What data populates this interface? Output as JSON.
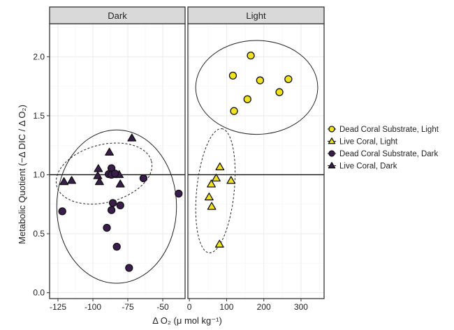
{
  "chart_data": {
    "type": "scatter",
    "title": "",
    "ylabel": "Metabolic Quotient (−Δ DIC / Δ O₂)",
    "xlabel": "Δ O₂ (μ mol kg⁻¹)",
    "ylim": [
      -0.05,
      2.28
    ],
    "yticks": [
      0.0,
      0.5,
      1.0,
      1.5,
      2.0
    ],
    "ytick_labels": [
      "0.0",
      "0.5",
      "1.0",
      "1.5",
      "2.0"
    ],
    "reference_line_y": 1.0,
    "grid": true,
    "legend_position": "right",
    "colors": {
      "light": "#f1e21f",
      "dark": "#3b1d4d",
      "stroke": "#111111"
    },
    "legend": [
      {
        "label": "Dead Coral Substrate, Light",
        "shape": "circle",
        "color": "light"
      },
      {
        "label": "Live Coral, Light",
        "shape": "triangle",
        "color": "light"
      },
      {
        "label": "Dead Coral Substrate, Dark",
        "shape": "circle",
        "color": "dark"
      },
      {
        "label": "Live Coral, Dark",
        "shape": "triangle",
        "color": "dark"
      }
    ],
    "panels": [
      {
        "strip": "Dark",
        "xlim": [
          -131,
          -34
        ],
        "xticks": [
          -125,
          -100,
          -75,
          -50
        ],
        "xtick_labels": [
          "-125",
          "-100",
          "-75",
          "-50"
        ],
        "series": [
          {
            "name": "Live Coral, Dark",
            "shape": "triangle",
            "color": "dark",
            "points": [
              [
                -72.1,
                1.31
              ],
              [
                -88.2,
                1.19
              ],
              [
                -96.1,
                1.05
              ],
              [
                -96.5,
                0.99
              ],
              [
                -95.3,
                0.94
              ],
              [
                -120.7,
                0.94
              ],
              [
                -115.2,
                0.95
              ],
              [
                -81.2,
                1.0
              ],
              [
                -80.4,
                0.92
              ],
              [
                -85.5,
                1.0
              ]
            ]
          },
          {
            "name": "Dead Coral Substrate, Dark",
            "shape": "circle",
            "color": "dark",
            "points": [
              [
                -86.7,
                1.055
              ],
              [
                -88.7,
                1.005
              ],
              [
                -86.7,
                1.0
              ],
              [
                -84.2,
                1.01
              ],
              [
                -63.8,
                0.97
              ],
              [
                -38.6,
                0.84
              ],
              [
                -121.9,
                0.69
              ],
              [
                -85.7,
                0.76
              ],
              [
                -86.7,
                0.7
              ],
              [
                -80.4,
                0.74
              ],
              [
                -90.0,
                0.55
              ],
              [
                -82.9,
                0.39
              ],
              [
                -74.1,
                0.21
              ]
            ]
          }
        ],
        "ellipses": [
          {
            "style": "solid",
            "center": [
              -83,
              0.73
            ],
            "major_end": [
              -83,
              1.38
            ],
            "minor_to_major_ratio": 0.78
          },
          {
            "style": "dashed",
            "center": [
              -92.0,
              1.01
            ],
            "major_end": [
              -58.1,
              1.115
            ],
            "minor_to_major_ratio": 0.59
          }
        ]
      },
      {
        "strip": "Light",
        "xlim": [
          -4,
          362
        ],
        "xticks": [
          0,
          100,
          200,
          300
        ],
        "xtick_labels": [
          "0",
          "100",
          "200",
          "300"
        ],
        "series": [
          {
            "name": "Dead Coral Substrate, Light",
            "shape": "circle",
            "color": "light",
            "points": [
              [
                165,
                2.01
              ],
              [
                117,
                1.84
              ],
              [
                190,
                1.8
              ],
              [
                266,
                1.81
              ],
              [
                242,
                1.7
              ],
              [
                156,
                1.64
              ],
              [
                120,
                1.54
              ]
            ]
          },
          {
            "name": "Live Coral, Light",
            "shape": "triangle",
            "color": "light",
            "points": [
              [
                82,
                1.065
              ],
              [
                72,
                0.97
              ],
              [
                112,
                0.95
              ],
              [
                59,
                0.92
              ],
              [
                53,
                0.81
              ],
              [
                60,
                0.73
              ],
              [
                81,
                0.41
              ]
            ]
          }
        ],
        "ellipses": [
          {
            "style": "solid",
            "center": [
              181,
              1.74
            ],
            "major_end": [
              345,
              1.74
            ],
            "minor_to_major_ratio": 0.77
          },
          {
            "style": "dashed",
            "center": [
              70,
              0.864
            ],
            "major_end": [
              87,
              1.39
            ],
            "minor_to_major_ratio": 0.3
          }
        ]
      }
    ]
  }
}
